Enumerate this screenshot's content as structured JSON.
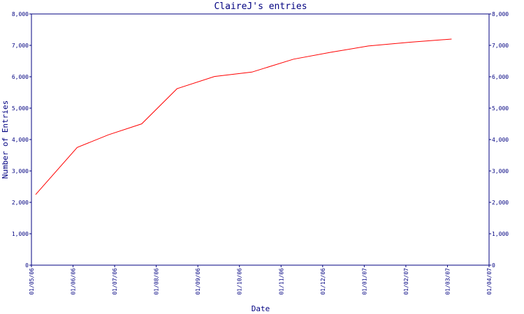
{
  "chart_data": {
    "type": "line",
    "title": "ClaireJ's entries",
    "xlabel": "Date",
    "ylabel": "Number of Entries",
    "ylim": [
      0,
      8000
    ],
    "y_ticks": [
      "0",
      "1,000",
      "2,000",
      "3,000",
      "4,000",
      "5,000",
      "6,000",
      "7,000",
      "8,000"
    ],
    "x_ticks": [
      "01/05/06",
      "01/06/06",
      "01/07/06",
      "01/08/06",
      "01/09/06",
      "01/10/06",
      "01/11/06",
      "01/12/06",
      "01/01/07",
      "01/02/07",
      "01/03/07",
      "01/04/07"
    ],
    "xlim": [
      0,
      11
    ],
    "grid": false,
    "legend": "none",
    "series_color": "#ff0000",
    "axis_color": "#000080",
    "series": [
      {
        "x": [
          0.1,
          1.1,
          1.85,
          2.65,
          3.5,
          4.4,
          5.3,
          6.3,
          7.2,
          8.1,
          9.1,
          10.1
        ],
        "values": [
          2250,
          3750,
          4150,
          4500,
          5620,
          6010,
          6150,
          6560,
          6780,
          6980,
          7100,
          7200
        ]
      }
    ]
  }
}
